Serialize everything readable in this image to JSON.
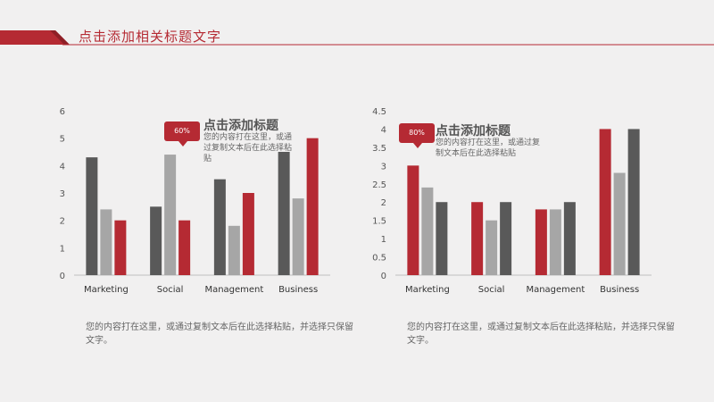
{
  "header": {
    "title": "点击添加相关标题文字"
  },
  "colors": {
    "accent": "#b52a33",
    "dark_gray": "#595959",
    "light_gray": "#a6a6a6",
    "axis": "#bfbfbf"
  },
  "chart_data": [
    {
      "type": "bar",
      "categories": [
        "Marketing",
        "Social",
        "Management",
        "Business"
      ],
      "ylim": [
        0,
        6
      ],
      "yticks": [
        "0",
        "1",
        "2",
        "3",
        "4",
        "5",
        "6"
      ],
      "series": [
        {
          "color": "#595959",
          "values": [
            4.3,
            2.5,
            3.5,
            4.5
          ]
        },
        {
          "color": "#a6a6a6",
          "values": [
            2.4,
            4.4,
            1.8,
            2.8
          ]
        },
        {
          "color": "#b52a33",
          "values": [
            2.0,
            2.0,
            3.0,
            5.0
          ]
        }
      ]
    },
    {
      "type": "bar",
      "categories": [
        "Marketing",
        "Social",
        "Management",
        "Business"
      ],
      "ylim": [
        0,
        4.5
      ],
      "yticks": [
        "0",
        "0.5",
        "1",
        "1.5",
        "2",
        "2.5",
        "3",
        "3.5",
        "4",
        "4.5"
      ],
      "series": [
        {
          "color": "#b52a33",
          "values": [
            3.0,
            2.0,
            1.8,
            4.0
          ]
        },
        {
          "color": "#a6a6a6",
          "values": [
            2.4,
            1.5,
            1.8,
            2.8
          ]
        },
        {
          "color": "#595959",
          "values": [
            2.0,
            2.0,
            2.0,
            4.0
          ]
        }
      ]
    }
  ],
  "callouts": [
    {
      "badge": "60%",
      "title": "点击添加标题",
      "body": "您的内容打在这里，或通过复制文本后在此选择粘贴"
    },
    {
      "badge": "80%",
      "title": "点击添加标题",
      "body": "您的内容打在这里，或通过复制文本后在此选择粘贴"
    }
  ],
  "descriptions": [
    "您的内容打在这里，或通过复制文本后在此选择粘贴，并选择只保留文字。",
    "您的内容打在这里，或通过复制文本后在此选择粘贴，并选择只保留文字。"
  ]
}
